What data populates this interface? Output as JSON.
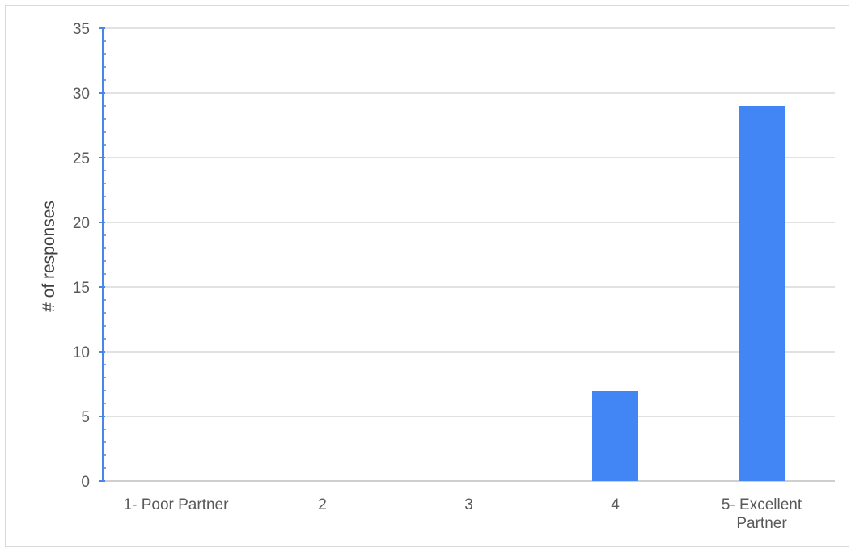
{
  "chart_data": {
    "type": "bar",
    "categories": [
      "1- Poor Partner",
      "2",
      "3",
      "4",
      "5- Excellent Partner"
    ],
    "values": [
      0,
      0,
      0,
      7,
      29
    ],
    "ylabel": "# of responses",
    "xlabel": "",
    "ylim": [
      0,
      35
    ],
    "yticks": [
      0,
      5,
      10,
      15,
      20,
      25,
      30,
      35
    ],
    "grid": true,
    "legend": "none",
    "colors": {
      "bar": "#4285f4",
      "axis": "#4a86e8",
      "grid": "#d9d9d9"
    }
  }
}
